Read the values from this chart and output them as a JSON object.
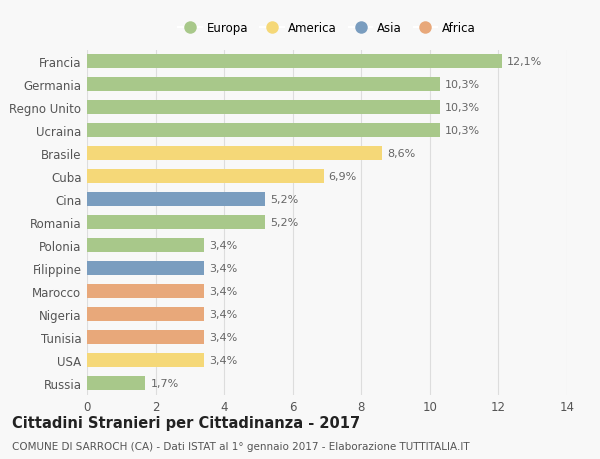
{
  "categories": [
    "Francia",
    "Germania",
    "Regno Unito",
    "Ucraina",
    "Brasile",
    "Cuba",
    "Cina",
    "Romania",
    "Polonia",
    "Filippine",
    "Marocco",
    "Nigeria",
    "Tunisia",
    "USA",
    "Russia"
  ],
  "values": [
    12.1,
    10.3,
    10.3,
    10.3,
    8.6,
    6.9,
    5.2,
    5.2,
    3.4,
    3.4,
    3.4,
    3.4,
    3.4,
    3.4,
    1.7
  ],
  "labels": [
    "12,1%",
    "10,3%",
    "10,3%",
    "10,3%",
    "8,6%",
    "6,9%",
    "5,2%",
    "5,2%",
    "3,4%",
    "3,4%",
    "3,4%",
    "3,4%",
    "3,4%",
    "3,4%",
    "1,7%"
  ],
  "regions": [
    "Europa",
    "Europa",
    "Europa",
    "Europa",
    "America",
    "America",
    "Asia",
    "Europa",
    "Europa",
    "Asia",
    "Africa",
    "Africa",
    "Africa",
    "America",
    "Europa"
  ],
  "colors": {
    "Europa": "#a8c88a",
    "America": "#f5d878",
    "Asia": "#7a9dbf",
    "Africa": "#e8a87a"
  },
  "legend_order": [
    "Europa",
    "America",
    "Asia",
    "Africa"
  ],
  "xlim": [
    0,
    14
  ],
  "xticks": [
    0,
    2,
    4,
    6,
    8,
    10,
    12,
    14
  ],
  "title": "Cittadini Stranieri per Cittadinanza - 2017",
  "subtitle": "COMUNE DI SARROCH (CA) - Dati ISTAT al 1° gennaio 2017 - Elaborazione TUTTITALIA.IT",
  "bg_color": "#f8f8f8",
  "grid_color": "#dddddd",
  "bar_height": 0.62,
  "label_fontsize": 8,
  "ytick_fontsize": 8.5,
  "xtick_fontsize": 8.5,
  "title_fontsize": 10.5,
  "subtitle_fontsize": 7.5
}
